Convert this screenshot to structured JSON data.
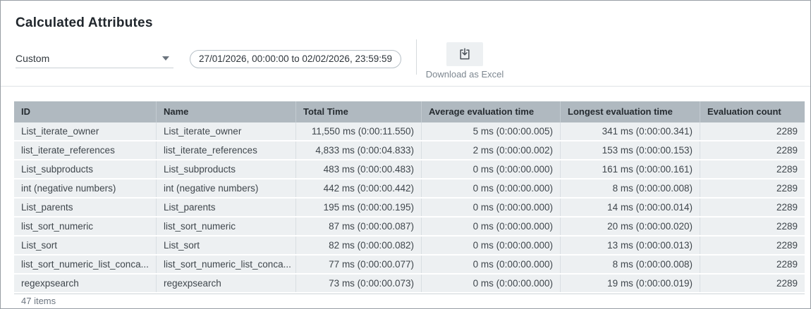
{
  "page": {
    "title": "Calculated Attributes"
  },
  "toolbar": {
    "range_select": {
      "value": "Custom",
      "icon": "chevron-down-icon"
    },
    "date_range": "27/01/2026, 00:00:00 to 02/02/2026, 23:59:59",
    "download": {
      "label": "Download as Excel",
      "icon": "download-icon"
    }
  },
  "table": {
    "columns": [
      {
        "label": "ID",
        "align": "left"
      },
      {
        "label": "Name",
        "align": "left"
      },
      {
        "label": "Total Time",
        "align": "right"
      },
      {
        "label": "Average evaluation time",
        "align": "right"
      },
      {
        "label": "Longest evaluation time",
        "align": "right"
      },
      {
        "label": "Evaluation count",
        "align": "right"
      }
    ],
    "rows": [
      {
        "id": "List_iterate_owner",
        "name": "List_iterate_owner",
        "total_time": "11,550 ms (0:00:11.550)",
        "average_evaluation_time": "5 ms (0:00:00.005)",
        "longest_evaluation_time": "341 ms (0:00:00.341)",
        "evaluation_count": "2289"
      },
      {
        "id": "list_iterate_references",
        "name": "list_iterate_references",
        "total_time": "4,833 ms (0:00:04.833)",
        "average_evaluation_time": "2 ms (0:00:00.002)",
        "longest_evaluation_time": "153 ms (0:00:00.153)",
        "evaluation_count": "2289"
      },
      {
        "id": "List_subproducts",
        "name": "List_subproducts",
        "total_time": "483 ms (0:00:00.483)",
        "average_evaluation_time": "0 ms (0:00:00.000)",
        "longest_evaluation_time": "161 ms (0:00:00.161)",
        "evaluation_count": "2289"
      },
      {
        "id": "int (negative numbers)",
        "name": "int (negative numbers)",
        "total_time": "442 ms (0:00:00.442)",
        "average_evaluation_time": "0 ms (0:00:00.000)",
        "longest_evaluation_time": "8 ms (0:00:00.008)",
        "evaluation_count": "2289"
      },
      {
        "id": "List_parents",
        "name": "List_parents",
        "total_time": "195 ms (0:00:00.195)",
        "average_evaluation_time": "0 ms (0:00:00.000)",
        "longest_evaluation_time": "14 ms (0:00:00.014)",
        "evaluation_count": "2289"
      },
      {
        "id": "list_sort_numeric",
        "name": "list_sort_numeric",
        "total_time": "87 ms (0:00:00.087)",
        "average_evaluation_time": "0 ms (0:00:00.000)",
        "longest_evaluation_time": "20 ms (0:00:00.020)",
        "evaluation_count": "2289"
      },
      {
        "id": "List_sort",
        "name": "List_sort",
        "total_time": "82 ms (0:00:00.082)",
        "average_evaluation_time": "0 ms (0:00:00.000)",
        "longest_evaluation_time": "13 ms (0:00:00.013)",
        "evaluation_count": "2289"
      },
      {
        "id": "list_sort_numeric_list_conca...",
        "name": "list_sort_numeric_list_conca...",
        "total_time": "77 ms (0:00:00.077)",
        "average_evaluation_time": "0 ms (0:00:00.000)",
        "longest_evaluation_time": "8 ms (0:00:00.008)",
        "evaluation_count": "2289"
      },
      {
        "id": "regexpsearch",
        "name": "regexpsearch",
        "total_time": "73 ms (0:00:00.073)",
        "average_evaluation_time": "0 ms (0:00:00.000)",
        "longest_evaluation_time": "19 ms (0:00:00.019)",
        "evaluation_count": "2289"
      }
    ],
    "footer": "47 items"
  },
  "colors": {
    "table_header_bg": "#b0b9c0",
    "table_row_bg": "#edf0f2",
    "text_dark": "#21272d",
    "text_muted": "#7d8790",
    "pill_border": "#b7c0c7"
  }
}
